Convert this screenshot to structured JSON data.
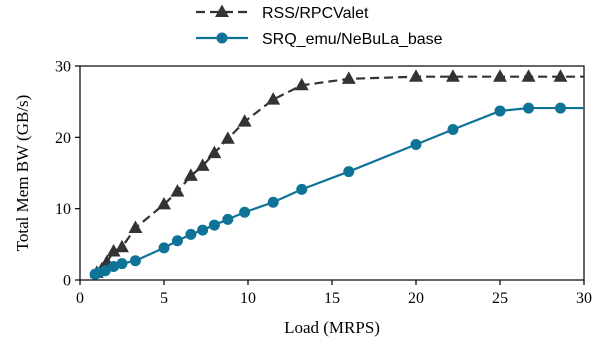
{
  "chart_data": {
    "type": "line",
    "xlabel": "Load (MRPS)",
    "ylabel": "Total Mem BW (GB/s)",
    "xlim": [
      0,
      30
    ],
    "ylim": [
      0,
      30
    ],
    "xticks": [
      0,
      5,
      10,
      15,
      20,
      25,
      30
    ],
    "yticks": [
      0,
      10,
      20,
      30
    ],
    "grid": false,
    "legend": "top-center-outside",
    "series": [
      {
        "name": "RSS/RPCValet",
        "color": "#333333",
        "marker": "triangle",
        "dash": "dashed",
        "x": [
          1.0,
          1.3,
          1.6,
          2.0,
          2.5,
          3.3,
          5.0,
          5.8,
          6.6,
          7.3,
          8.0,
          8.8,
          9.8,
          11.5,
          13.2,
          16.0,
          20.0,
          22.2,
          25.0,
          26.7,
          28.6,
          30.0
        ],
        "y": [
          1.0,
          1.5,
          2.5,
          4.0,
          4.6,
          7.3,
          10.6,
          12.4,
          14.6,
          16.0,
          17.8,
          19.8,
          22.2,
          25.3,
          27.3,
          28.2,
          28.5,
          28.5,
          28.5,
          28.5,
          28.5,
          28.5
        ]
      },
      {
        "name": "SRQ_emu/NeBuLa_base",
        "color": "#0e7397",
        "marker": "circle",
        "dash": "solid",
        "x": [
          0.9,
          1.1,
          1.5,
          2.0,
          2.5,
          3.3,
          5.0,
          5.8,
          6.6,
          7.3,
          8.0,
          8.8,
          9.8,
          11.5,
          13.2,
          16.0,
          20.0,
          22.2,
          25.0,
          26.7,
          28.6,
          30.0
        ],
        "y": [
          0.8,
          1.0,
          1.3,
          1.9,
          2.3,
          2.7,
          4.5,
          5.5,
          6.4,
          7.0,
          7.7,
          8.5,
          9.5,
          10.9,
          12.7,
          15.2,
          19.0,
          21.1,
          23.7,
          24.1,
          24.1,
          24.1
        ]
      }
    ]
  }
}
